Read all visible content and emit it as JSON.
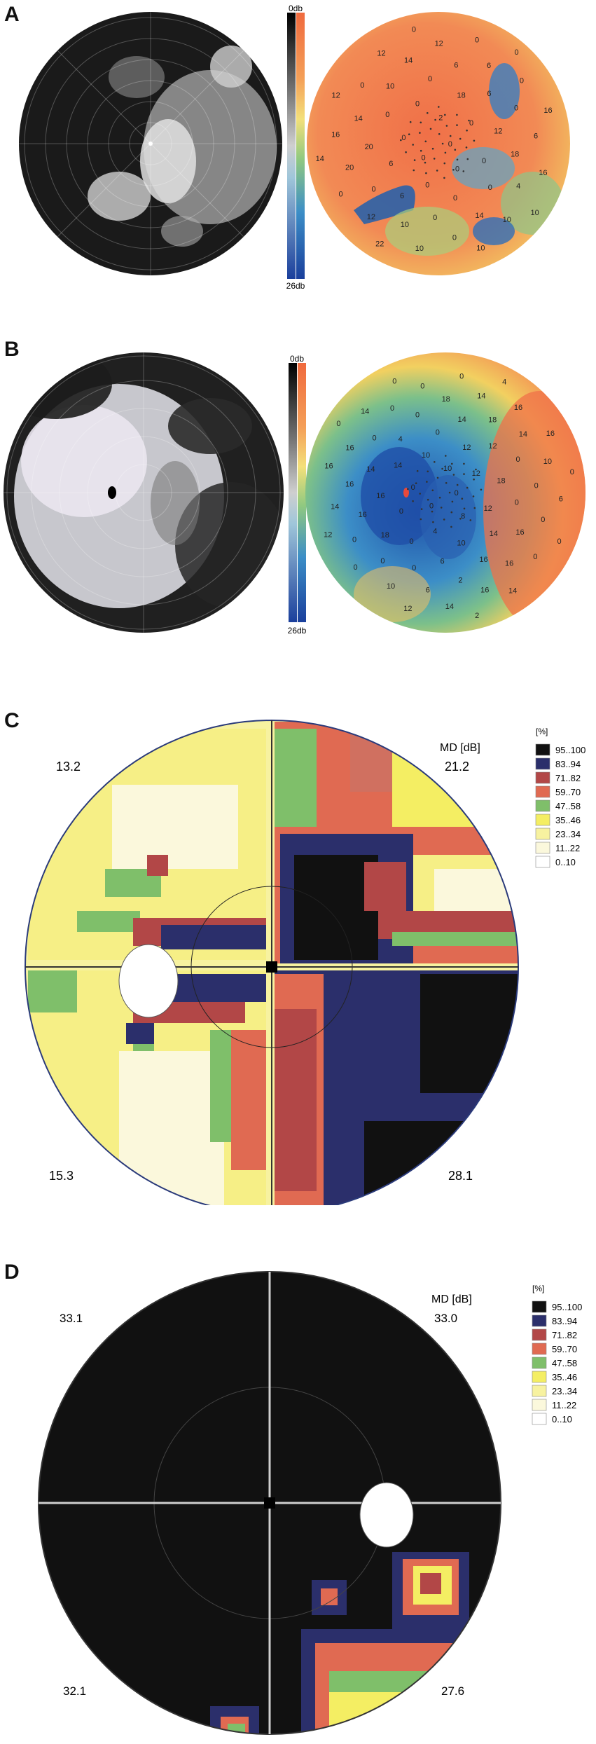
{
  "panels": [
    {
      "label": "A",
      "colorbar": {
        "top": "0db",
        "bottom": "26db"
      },
      "numbers": [
        "0",
        "0",
        "2",
        "0",
        "0",
        "0",
        "0",
        "0",
        "0",
        "6",
        "18",
        "0",
        "0",
        "12",
        "6",
        "0",
        "0",
        "20",
        "6",
        "0",
        "10",
        "18",
        "0",
        "6",
        "14",
        "14",
        "0",
        "10",
        "14",
        "4",
        "20",
        "6",
        "0",
        "0",
        "6",
        "12",
        "12",
        "10",
        "16",
        "0",
        "10",
        "12",
        "16",
        "0",
        "0",
        "10",
        "12",
        "16",
        "22",
        "0",
        "10",
        "14",
        "0"
      ]
    },
    {
      "label": "B",
      "colorbar": {
        "top": "0db",
        "bottom": "26db"
      },
      "numbers": [
        "0",
        "0",
        "10",
        "8",
        "0",
        "12",
        "4",
        "10",
        "12",
        "0",
        "12",
        "10",
        "14",
        "18",
        "0",
        "0",
        "14",
        "16",
        "12",
        "6",
        "4",
        "0",
        "18",
        "14",
        "16",
        "14",
        "0",
        "0",
        "0",
        "16",
        "16",
        "18",
        "2",
        "0",
        "0",
        "0",
        "18",
        "16",
        "16",
        "14",
        "6",
        "0",
        "0",
        "0",
        "14",
        "16",
        "16",
        "10",
        "10",
        "0",
        "0",
        "14",
        "16",
        "14",
        "14",
        "6",
        "0",
        "0",
        "14",
        "16",
        "16",
        "12",
        "0",
        "0",
        "12",
        "4",
        "2",
        "0",
        "0"
      ]
    },
    {
      "label": "C",
      "legend": {
        "title": "[%]",
        "items": [
          "95..100",
          "83..94",
          "71..82",
          "59..70",
          "47..58",
          "35..46",
          "23..34",
          "11..22",
          "0..10"
        ]
      },
      "md_label": "MD [dB]",
      "quadrants": {
        "top_left": "13.2",
        "top_right": "21.2",
        "bottom_left": "15.3",
        "bottom_right": "28.1"
      }
    },
    {
      "label": "D",
      "legend": {
        "title": "[%]",
        "items": [
          "95..100",
          "83..94",
          "71..82",
          "59..70",
          "47..58",
          "35..46",
          "23..34",
          "11..22",
          "0..10"
        ]
      },
      "md_label": "MD [dB]",
      "quadrants": {
        "top_left": "33.1",
        "top_right": "33.0",
        "bottom_left": "32.1",
        "bottom_right": "27.6"
      }
    }
  ],
  "colors": {
    "legend": [
      "#111111",
      "#2b2f6b",
      "#b24747",
      "#e06a52",
      "#7fbf6a",
      "#f4ee63",
      "#f7f2a0",
      "#fbf8dc",
      "#ffffff"
    ],
    "heat_hot": "#f07048",
    "heat_mid": "#f2d060",
    "heat_green": "#6cc08a",
    "heat_blue": "#1f5fae"
  }
}
